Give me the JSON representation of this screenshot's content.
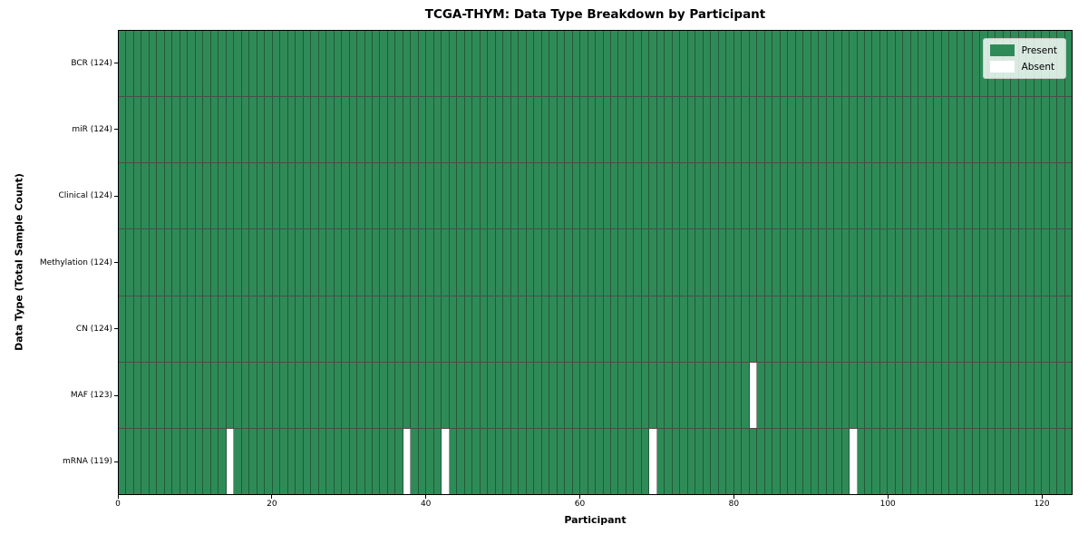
{
  "title": "TCGA-THYM: Data Type Breakdown by Participant",
  "axes": {
    "xlabel": "Participant",
    "ylabel": "Data Type (Total Sample Count)"
  },
  "legend": {
    "entries": [
      {
        "label": "Present",
        "color": "#2e8b57"
      },
      {
        "label": "Absent",
        "color": "#ffffff"
      }
    ]
  },
  "chart_data": {
    "type": "heatmap",
    "title": "TCGA-THYM: Data Type Breakdown by Participant",
    "xlabel": "Participant",
    "ylabel": "Data Type (Total Sample Count)",
    "n_participants": 124,
    "x_ticks": [
      0,
      20,
      40,
      60,
      80,
      100,
      120
    ],
    "xlim": [
      0,
      124
    ],
    "grid": "cell-borders",
    "legend_position": "upper right",
    "colors": {
      "present": "#2e8b57",
      "absent": "#ffffff",
      "cell_border": "rgba(26,26,26,0.45)",
      "row_border": "rgba(0,0,0,0.7)"
    },
    "rows": [
      {
        "name": "BCR",
        "label": "BCR (124)",
        "total_present": 124,
        "absent_participants": []
      },
      {
        "name": "miR",
        "label": "miR (124)",
        "total_present": 124,
        "absent_participants": []
      },
      {
        "name": "Clinical",
        "label": "Clinical (124)",
        "total_present": 124,
        "absent_participants": []
      },
      {
        "name": "Methylation",
        "label": "Methylation (124)",
        "total_present": 124,
        "absent_participants": []
      },
      {
        "name": "CN",
        "label": "CN (124)",
        "total_present": 124,
        "absent_participants": []
      },
      {
        "name": "MAF",
        "label": "MAF (123)",
        "total_present": 123,
        "absent_participants": [
          82
        ]
      },
      {
        "name": "mRNA",
        "label": "mRNA (119)",
        "total_present": 119,
        "absent_participants": [
          14,
          37,
          42,
          69,
          95
        ]
      }
    ]
  }
}
